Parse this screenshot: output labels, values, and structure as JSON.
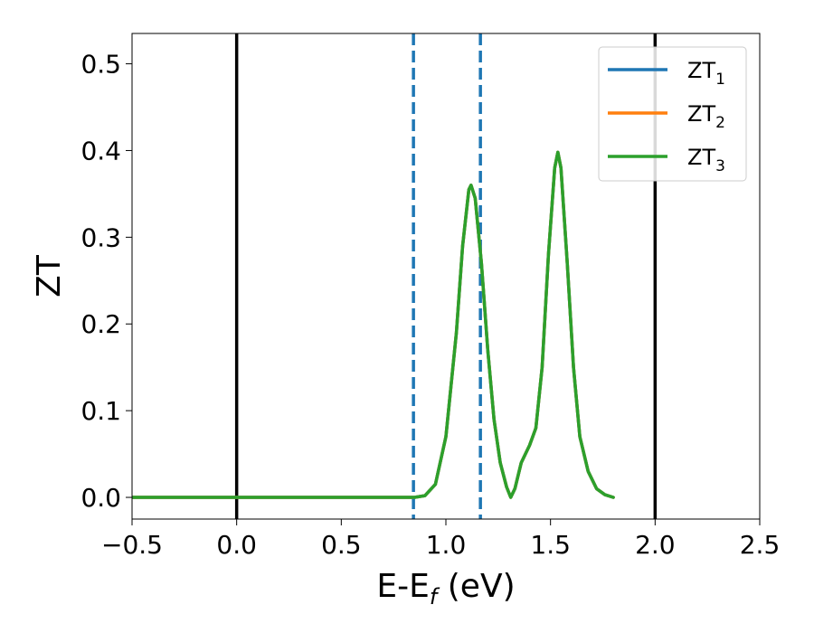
{
  "chart_data": {
    "type": "line",
    "xlabel_main": "E-E",
    "xlabel_sub": "f",
    "xlabel_unit": " (eV)",
    "ylabel": "ZT",
    "xlim": [
      -0.5,
      2.5
    ],
    "ylim": [
      -0.025,
      0.535
    ],
    "xticks": [
      "−0.5",
      "0.0",
      "0.5",
      "1.0",
      "1.5",
      "2.0",
      "2.5"
    ],
    "xtick_values": [
      -0.5,
      0.0,
      0.5,
      1.0,
      1.5,
      2.0,
      2.5
    ],
    "yticks": [
      "0.0",
      "0.1",
      "0.2",
      "0.3",
      "0.4",
      "0.5"
    ],
    "ytick_values": [
      0.0,
      0.1,
      0.2,
      0.3,
      0.4,
      0.5
    ],
    "grid": false,
    "legend_position": "top-right",
    "vertical_lines": [
      {
        "x": 0.0,
        "style": "solid",
        "color": "#000000"
      },
      {
        "x": 2.0,
        "style": "solid",
        "color": "#000000"
      },
      {
        "x": 0.845,
        "style": "dashed",
        "color": "#1f77b4"
      },
      {
        "x": 1.165,
        "style": "dashed",
        "color": "#1f77b4"
      }
    ],
    "series": [
      {
        "name": "ZT",
        "sub": "1",
        "color": "#1f77b4",
        "x": [
          -0.5,
          0.0,
          0.5,
          0.8,
          0.85,
          0.9,
          0.95,
          1.0,
          1.05,
          1.08,
          1.11,
          1.12,
          1.14,
          1.17,
          1.2,
          1.23,
          1.26,
          1.29,
          1.31,
          1.33,
          1.36,
          1.4,
          1.43,
          1.46,
          1.49,
          1.52,
          1.535,
          1.55,
          1.58,
          1.61,
          1.64,
          1.68,
          1.72,
          1.76,
          1.8
        ],
        "y": [
          0.0,
          0.0,
          0.0,
          0.0,
          0.0,
          0.002,
          0.015,
          0.07,
          0.19,
          0.29,
          0.355,
          0.36,
          0.345,
          0.27,
          0.17,
          0.09,
          0.04,
          0.012,
          0.0,
          0.01,
          0.04,
          0.06,
          0.08,
          0.15,
          0.28,
          0.38,
          0.398,
          0.38,
          0.27,
          0.15,
          0.07,
          0.03,
          0.01,
          0.003,
          0.0
        ]
      },
      {
        "name": "ZT",
        "sub": "2",
        "color": "#ff7f0e",
        "x": [
          -0.5,
          0.0,
          0.5,
          0.8,
          0.85,
          0.9,
          0.95,
          1.0,
          1.05,
          1.08,
          1.11,
          1.12,
          1.14,
          1.17,
          1.2,
          1.23,
          1.26,
          1.29,
          1.31,
          1.33,
          1.36,
          1.4,
          1.43,
          1.46,
          1.49,
          1.52,
          1.535,
          1.55,
          1.58,
          1.61,
          1.64,
          1.68,
          1.72,
          1.76,
          1.8
        ],
        "y": [
          0.0,
          0.0,
          0.0,
          0.0,
          0.0,
          0.002,
          0.015,
          0.07,
          0.19,
          0.29,
          0.355,
          0.36,
          0.345,
          0.27,
          0.17,
          0.09,
          0.04,
          0.012,
          0.0,
          0.01,
          0.04,
          0.06,
          0.08,
          0.15,
          0.28,
          0.38,
          0.398,
          0.38,
          0.27,
          0.15,
          0.07,
          0.03,
          0.01,
          0.003,
          0.0
        ]
      },
      {
        "name": "ZT",
        "sub": "3",
        "color": "#2ca02c",
        "x": [
          -0.5,
          0.0,
          0.5,
          0.8,
          0.85,
          0.9,
          0.95,
          1.0,
          1.05,
          1.08,
          1.11,
          1.12,
          1.14,
          1.17,
          1.2,
          1.23,
          1.26,
          1.29,
          1.31,
          1.33,
          1.36,
          1.4,
          1.43,
          1.46,
          1.49,
          1.52,
          1.535,
          1.55,
          1.58,
          1.61,
          1.64,
          1.68,
          1.72,
          1.76,
          1.8
        ],
        "y": [
          0.0,
          0.0,
          0.0,
          0.0,
          0.0,
          0.002,
          0.015,
          0.07,
          0.19,
          0.29,
          0.355,
          0.36,
          0.345,
          0.27,
          0.17,
          0.09,
          0.04,
          0.012,
          0.0,
          0.01,
          0.04,
          0.06,
          0.08,
          0.15,
          0.28,
          0.38,
          0.398,
          0.38,
          0.27,
          0.15,
          0.07,
          0.03,
          0.01,
          0.003,
          0.0
        ]
      }
    ]
  }
}
